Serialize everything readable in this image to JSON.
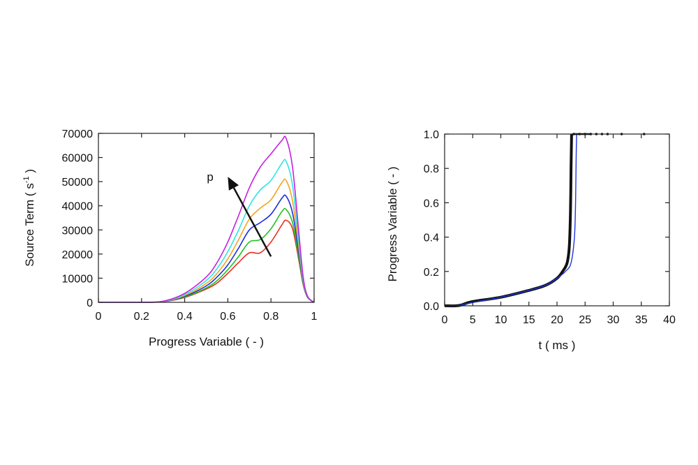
{
  "chart_data": [
    {
      "type": "line",
      "xlabel": "Progress Variable ( - )",
      "ylabel": "Source Term ( s",
      "ylabel_superscript": "-1",
      "ylabel_suffix": " )",
      "xlim": [
        0,
        1
      ],
      "ylim": [
        0,
        70000
      ],
      "x_ticks": [
        0,
        0.2,
        0.4,
        0.6,
        0.8,
        1
      ],
      "x_tick_labels": [
        "0",
        "0.2",
        "0.4",
        "0.6",
        "0.8",
        "1"
      ],
      "y_ticks": [
        0,
        10000,
        20000,
        30000,
        40000,
        50000,
        60000,
        70000
      ],
      "y_tick_labels": [
        "0",
        "10000",
        "20000",
        "30000",
        "40000",
        "50000",
        "60000",
        "70000"
      ],
      "grid": false,
      "annotation": {
        "text": "p",
        "arrow_from": [
          0.8,
          19000
        ],
        "arrow_to": [
          0.6,
          52000
        ]
      },
      "x": [
        0,
        0.1,
        0.2,
        0.3,
        0.4,
        0.5,
        0.55,
        0.6,
        0.65,
        0.7,
        0.75,
        0.8,
        0.85,
        0.87,
        0.9,
        0.93,
        0.95,
        0.97,
        1.0
      ],
      "series": [
        {
          "color": "#e8301e",
          "values": [
            0,
            0,
            0,
            300,
            2000,
            5500,
            8000,
            12000,
            16500,
            20500,
            20500,
            25000,
            32000,
            34000,
            30500,
            17000,
            7000,
            2000,
            0
          ]
        },
        {
          "color": "#22c222",
          "values": [
            0,
            0,
            0,
            300,
            2200,
            6000,
            9000,
            13500,
            19000,
            25000,
            26000,
            30500,
            37500,
            38500,
            33000,
            18000,
            7500,
            2000,
            0
          ]
        },
        {
          "color": "#1a2ee0",
          "values": [
            0,
            0,
            0,
            300,
            2500,
            6800,
            10500,
            15500,
            22500,
            30000,
            33000,
            36500,
            43000,
            44000,
            37000,
            20000,
            8000,
            2200,
            0
          ]
        },
        {
          "color": "#f5a31c",
          "values": [
            0,
            0,
            0,
            350,
            2800,
            7800,
            12000,
            18000,
            26000,
            34500,
            39000,
            42500,
            49500,
            50500,
            42000,
            22000,
            8500,
            2300,
            0
          ]
        },
        {
          "color": "#30e4e4",
          "values": [
            0,
            0,
            0,
            400,
            3200,
            9000,
            14000,
            21000,
            30000,
            40000,
            46500,
            50500,
            57500,
            58500,
            48500,
            24500,
            9000,
            2400,
            0
          ]
        },
        {
          "color": "#c81ee0",
          "values": [
            0,
            0,
            0,
            450,
            3700,
            10500,
            16500,
            25000,
            36000,
            47500,
            56000,
            61500,
            67000,
            68000,
            56000,
            28000,
            10000,
            2500,
            0
          ]
        }
      ]
    },
    {
      "type": "line",
      "xlabel": "t ( ms )",
      "ylabel": "Progress Variable ( - )",
      "xlim": [
        0,
        40
      ],
      "ylim": [
        0,
        1
      ],
      "x_ticks": [
        0,
        5,
        10,
        15,
        20,
        25,
        30,
        35,
        40
      ],
      "x_tick_labels": [
        "0",
        "5",
        "10",
        "15",
        "20",
        "25",
        "30",
        "35",
        "40"
      ],
      "y_ticks": [
        0,
        0.2,
        0.4,
        0.6,
        0.8,
        1.0
      ],
      "y_tick_labels": [
        "0.0",
        "0.2",
        "0.4",
        "0.6",
        "0.8",
        "1.0"
      ],
      "grid": false,
      "series": [
        {
          "color": "#111111",
          "style": "thick",
          "x": [
            0,
            2,
            3,
            5,
            10,
            15,
            18,
            20,
            21,
            21.8,
            22.2,
            22.4,
            22.5,
            22.6
          ],
          "values": [
            0,
            0,
            0.005,
            0.025,
            0.05,
            0.09,
            0.12,
            0.16,
            0.2,
            0.25,
            0.35,
            0.55,
            0.8,
            1.0
          ]
        },
        {
          "color": "#1f35e0",
          "style": "thin",
          "x": [
            0,
            2,
            3,
            5,
            10,
            15,
            18,
            20,
            21.5,
            22.5,
            23.1,
            23.3,
            23.4,
            23.5
          ],
          "values": [
            0,
            0,
            0.005,
            0.02,
            0.05,
            0.09,
            0.12,
            0.16,
            0.2,
            0.25,
            0.4,
            0.6,
            0.85,
            1.0
          ]
        },
        {
          "color": "#111111",
          "style": "points",
          "x": [
            23,
            24,
            25,
            26,
            27,
            28,
            29,
            31.5,
            35.5
          ],
          "values": [
            1,
            1,
            1,
            1,
            1,
            1,
            1,
            1,
            1
          ]
        }
      ]
    }
  ]
}
